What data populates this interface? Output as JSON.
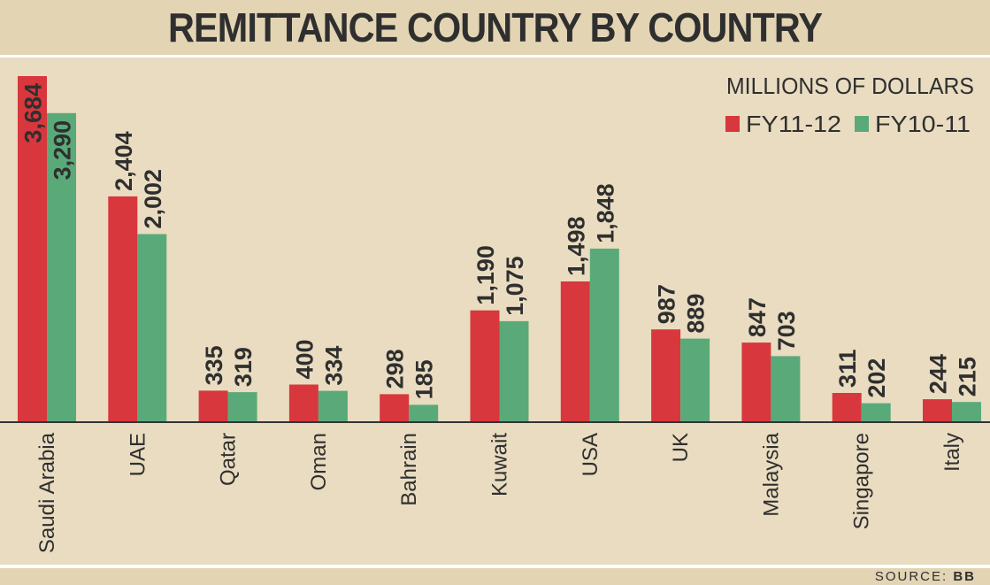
{
  "title": "REMITTANCE COUNTRY BY COUNTRY",
  "source_prefix": "SOURCE:",
  "source_value": "BB",
  "colors": {
    "fy1112": "#d8373d",
    "fy1011": "#5aaa79",
    "axis": "#333333",
    "text": "#2f2f2f"
  },
  "chart_data": {
    "type": "bar",
    "title": "REMITTANCE COUNTRY BY COUNTRY",
    "unit_label": "MILLIONS OF DOLLARS",
    "categories": [
      "Saudi Arabia",
      "UAE",
      "Qatar",
      "Oman",
      "Bahrain",
      "Kuwait",
      "USA",
      "UK",
      "Malaysia",
      "Singapore",
      "Italy"
    ],
    "series": [
      {
        "name": "FY11-12",
        "values": [
          3684,
          2404,
          335,
          400,
          298,
          1190,
          1498,
          987,
          847,
          311,
          244
        ],
        "labels": [
          "3,684",
          "2,404",
          "335",
          "400",
          "298",
          "1,190",
          "1,498",
          "987",
          "847",
          "311",
          "244"
        ]
      },
      {
        "name": "FY10-11",
        "values": [
          3290,
          2002,
          319,
          334,
          185,
          1075,
          1848,
          889,
          703,
          202,
          215
        ],
        "labels": [
          "3,290",
          "2,002",
          "319",
          "334",
          "185",
          "1,075",
          "1,848",
          "889",
          "703",
          "202",
          "215"
        ]
      }
    ],
    "ylim": [
      0,
      3684
    ],
    "legend": "top-right",
    "grid": false,
    "xlabel": "",
    "ylabel": ""
  }
}
